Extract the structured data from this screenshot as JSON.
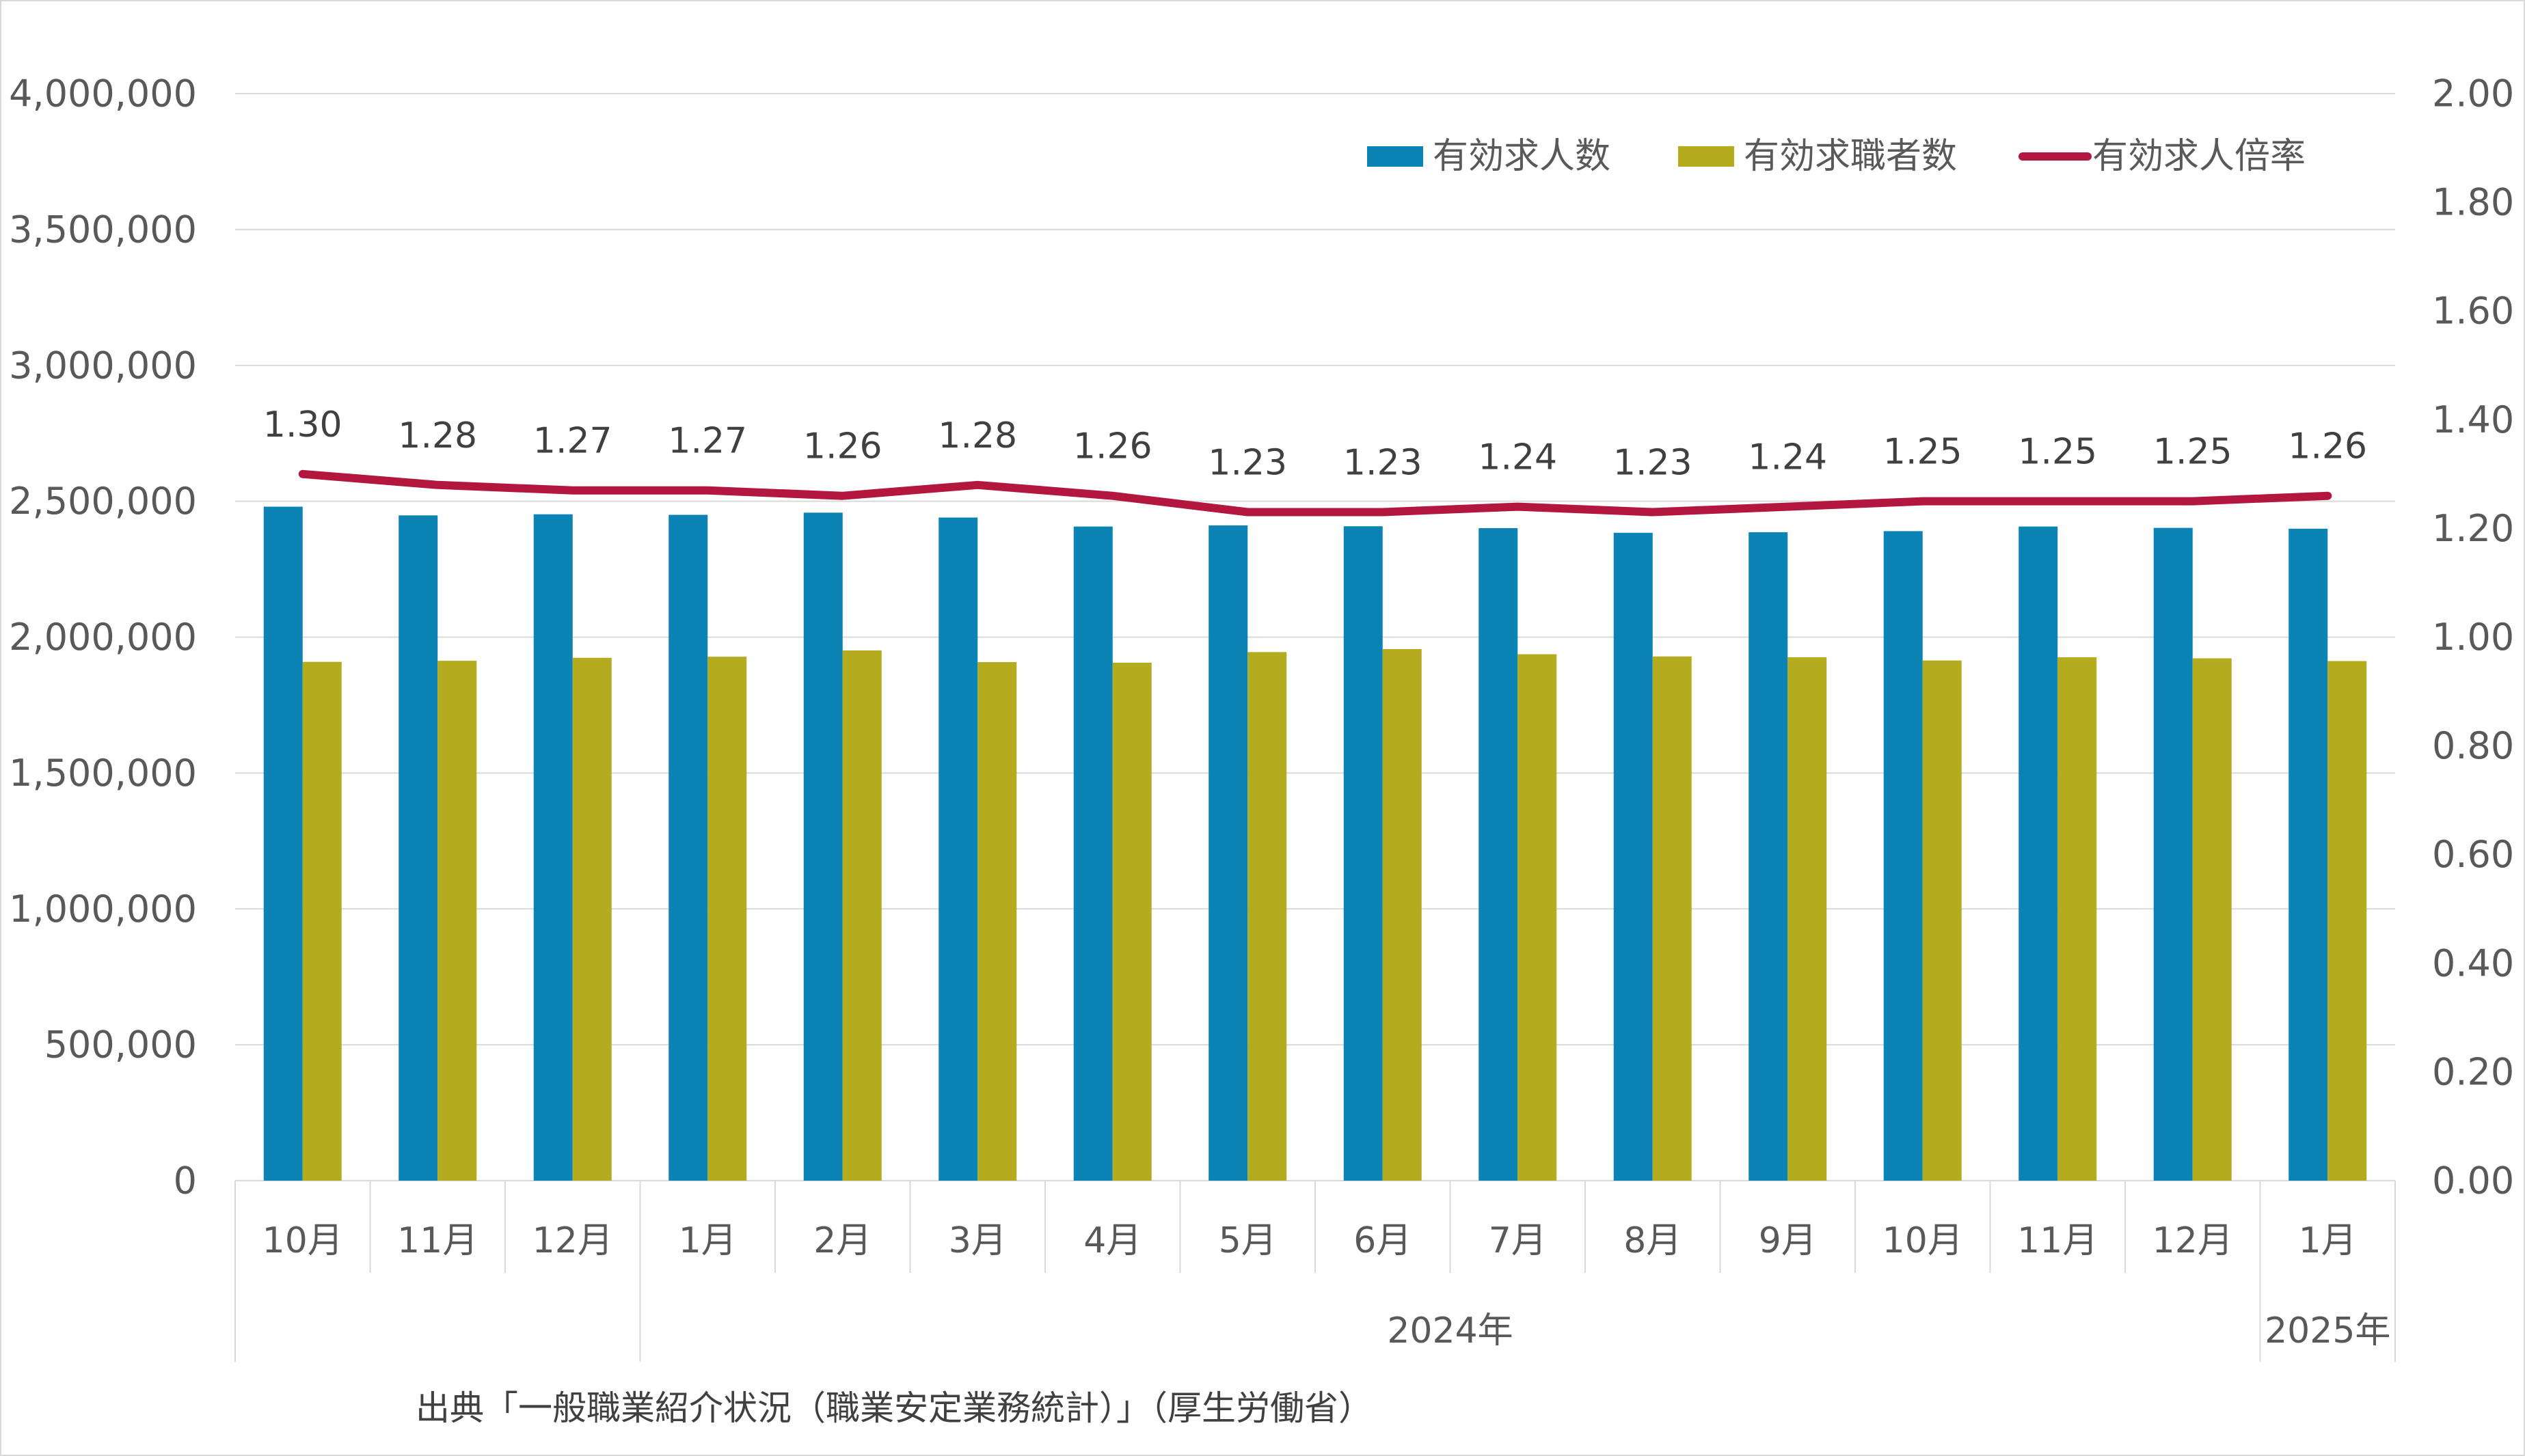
{
  "chart_data": {
    "type": "bar",
    "categories": [
      "10月",
      "11月",
      "12月",
      "1月",
      "2月",
      "3月",
      "4月",
      "5月",
      "6月",
      "7月",
      "8月",
      "9月",
      "10月",
      "11月",
      "12月",
      "1月"
    ],
    "category_groups": [
      {
        "label": "",
        "count": 3
      },
      {
        "label": "2024年",
        "count": 12
      },
      {
        "label": "2025年",
        "count": 1
      }
    ],
    "series": [
      {
        "name": "有効求人数",
        "type": "bar",
        "axis": "left",
        "color": "#0b83b5",
        "values": [
          2480000,
          2448000,
          2452000,
          2450000,
          2458000,
          2440000,
          2407000,
          2411000,
          2408000,
          2401000,
          2384000,
          2386000,
          2390000,
          2407000,
          2402000,
          2399000
        ]
      },
      {
        "name": "有効求職者数",
        "type": "bar",
        "axis": "left",
        "color": "#b5ab1e",
        "values": [
          1909000,
          1913000,
          1924000,
          1928000,
          1951000,
          1908000,
          1906000,
          1945000,
          1956000,
          1937000,
          1929000,
          1926000,
          1914000,
          1926000,
          1922000,
          1912000
        ]
      },
      {
        "name": "有効求人倍率",
        "type": "line",
        "axis": "right",
        "color": "#b3173f",
        "values": [
          1.3,
          1.28,
          1.27,
          1.27,
          1.26,
          1.28,
          1.26,
          1.23,
          1.23,
          1.24,
          1.23,
          1.24,
          1.25,
          1.25,
          1.25,
          1.26
        ],
        "data_labels": [
          "1.30",
          "1.28",
          "1.27",
          "1.27",
          "1.26",
          "1.28",
          "1.26",
          "1.23",
          "1.23",
          "1.24",
          "1.23",
          "1.24",
          "1.25",
          "1.25",
          "1.25",
          "1.26"
        ]
      }
    ],
    "y_left": {
      "min": 0,
      "max": 4000000,
      "step": 500000,
      "tick_labels": [
        "0",
        "500,000",
        "1,000,000",
        "1,500,000",
        "2,000,000",
        "2,500,000",
        "3,000,000",
        "3,500,000",
        "4,000,000"
      ]
    },
    "y_right": {
      "min": 0,
      "max": 2,
      "step": 0.2,
      "tick_labels": [
        "0.00",
        "0.20",
        "0.40",
        "0.60",
        "0.80",
        "1.00",
        "1.20",
        "1.40",
        "1.60",
        "1.80",
        "2.00"
      ]
    },
    "grid": true,
    "legend": "top-right",
    "colors": {
      "grid": "#d9d9d9",
      "text": "#595959"
    }
  },
  "source": "出典「一般職業紹介状況（職業安定業務統計）」（厚生労働省）"
}
